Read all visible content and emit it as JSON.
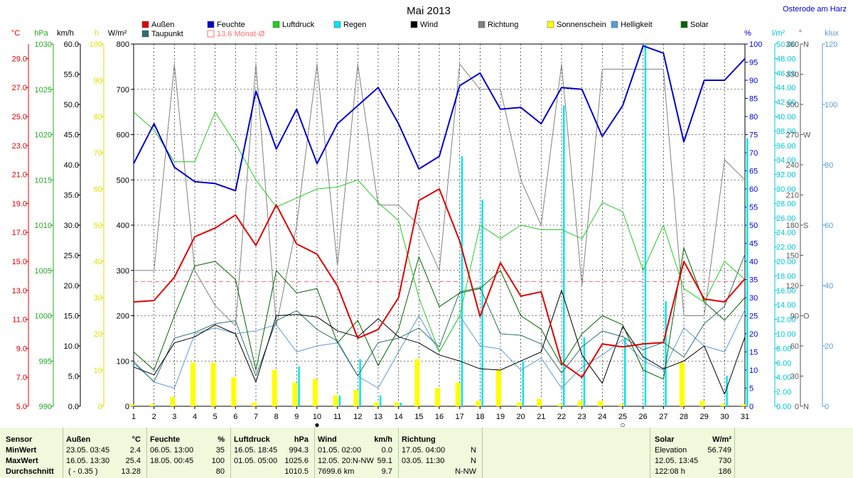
{
  "title": "Mai 2013",
  "location": "Osterode am Harz",
  "colors": {
    "aussen": "#e00000",
    "feuchte": "#0000cc",
    "luftdruck": "#22cc22",
    "regen": "#00e5ee",
    "wind": "#000000",
    "richtung": "#808080",
    "sonnenschein": "#ffff00",
    "helligkeit": "#5b9bd5",
    "solar": "#006400",
    "taupunkt": "#2f6f6f",
    "monat": "#ff7070"
  },
  "legend": [
    {
      "key": "aussen",
      "label": "Außen"
    },
    {
      "key": "feuchte",
      "label": "Feuchte"
    },
    {
      "key": "luftdruck",
      "label": "Luftdruck"
    },
    {
      "key": "regen",
      "label": "Regen"
    },
    {
      "key": "wind",
      "label": "Wind"
    },
    {
      "key": "richtung",
      "label": "Richtung"
    },
    {
      "key": "sonnenschein",
      "label": "Sonnenschein"
    },
    {
      "key": "helligkeit",
      "label": "Helligkeit"
    },
    {
      "key": "solar",
      "label": "Solar"
    },
    {
      "key": "taupunkt",
      "label": "Taupunkt"
    },
    {
      "key": "monat",
      "label": "13.6 Monat-Ø"
    }
  ],
  "axis_units": {
    "temp": "°C",
    "hpa": "hPa",
    "kmh": "km/h",
    "hours": "h",
    "wm2": "W/m²",
    "pct": "%",
    "lm2": "l/m²",
    "deg": "°",
    "klux": "klux"
  },
  "axes": {
    "temp": {
      "min": 5,
      "max": 30,
      "ticks": [
        "5.0",
        "7.0",
        "9.0",
        "11.0",
        "13.0",
        "15.0",
        "17.0",
        "19.0",
        "21.0",
        "23.0",
        "25.0",
        "27.0",
        "29.0"
      ]
    },
    "hpa": {
      "min": 990,
      "max": 1030,
      "ticks": [
        "990",
        "995",
        "1000",
        "1005",
        "1010",
        "1015",
        "1020",
        "1025",
        "1030"
      ]
    },
    "kmh": {
      "min": 0,
      "max": 60,
      "ticks": [
        "0.0",
        "5.0",
        "10.0",
        "15.0",
        "20.0",
        "25.0",
        "30.0",
        "35.0",
        "40.0",
        "45.0",
        "50.0",
        "55.0",
        "60.0"
      ]
    },
    "hours": {
      "min": 0,
      "max": 100,
      "ticks": [
        "0",
        "10",
        "20",
        "30",
        "40",
        "50",
        "60",
        "70",
        "80",
        "90",
        "100"
      ]
    },
    "wm2": {
      "min": 0,
      "max": 800,
      "ticks": [
        "0",
        "100",
        "200",
        "300",
        "400",
        "500",
        "600",
        "700",
        "800"
      ]
    },
    "pct": {
      "min": 0,
      "max": 100,
      "ticks": [
        "0",
        "5",
        "10",
        "15",
        "20",
        "25",
        "30",
        "35",
        "40",
        "45",
        "50",
        "55",
        "60",
        "65",
        "70",
        "75",
        "80",
        "85",
        "90",
        "95",
        "100"
      ]
    },
    "lm2": {
      "min": 0,
      "max": 50,
      "ticks": [
        "0.00",
        "2.00",
        "4.00",
        "6.00",
        "8.00",
        "10.00",
        "12.00",
        "14.00",
        "16.00",
        "18.00",
        "20.00",
        "22.00",
        "24.00",
        "26.00",
        "28.00",
        "30.00",
        "32.00",
        "34.00",
        "36.00",
        "38.00",
        "40.00",
        "42.00",
        "44.00",
        "46.00",
        "48.00",
        "50.00"
      ]
    },
    "deg": {
      "min": 0,
      "max": 360,
      "ticks": [
        "0",
        "30",
        "60",
        "90",
        "120",
        "150",
        "180",
        "210",
        "240",
        "270",
        "300",
        "330",
        "360"
      ],
      "compass": [
        {
          "value": 0,
          "label": "N"
        },
        {
          "value": 90,
          "label": "O"
        },
        {
          "value": 180,
          "label": "S"
        },
        {
          "value": 270,
          "label": "W"
        },
        {
          "value": 360,
          "label": "N"
        }
      ]
    },
    "klux": {
      "min": 0,
      "max": 120,
      "ticks": [
        "0",
        "20",
        "40",
        "60",
        "80",
        "100",
        "120"
      ]
    }
  },
  "chart_data": {
    "type": "line",
    "title": "Mai 2013",
    "x": [
      1,
      2,
      3,
      4,
      5,
      6,
      7,
      8,
      9,
      10,
      11,
      12,
      13,
      14,
      15,
      16,
      17,
      18,
      19,
      20,
      21,
      22,
      23,
      24,
      25,
      26,
      27,
      28,
      29,
      30,
      31
    ],
    "monthly_average_temp": 13.6,
    "series": [
      {
        "name": "Außen",
        "axis": "temp",
        "values": [
          12.2,
          12.3,
          13.9,
          16.7,
          17.3,
          18.2,
          16.1,
          18.9,
          16.2,
          15.5,
          13.3,
          9.7,
          10.3,
          12.5,
          19.2,
          20.0,
          16.4,
          11.2,
          14.9,
          12.6,
          12.9,
          8.0,
          7.0,
          9.3,
          9.1,
          9.3,
          9.4,
          15.0,
          12.4,
          12.2,
          13.8
        ]
      },
      {
        "name": "Feuchte",
        "axis": "pct",
        "values": [
          67,
          78,
          66,
          62,
          61.5,
          59.5,
          87,
          71,
          82,
          67,
          78,
          83,
          88,
          78,
          65.5,
          69,
          88.5,
          92,
          82,
          82.5,
          78,
          88,
          87.5,
          74.5,
          83,
          99.5,
          97.5,
          73,
          90,
          90,
          96
        ]
      },
      {
        "name": "Luftdruck",
        "axis": "hpa",
        "values": [
          1022.5,
          1020.5,
          1017,
          1017,
          1022.5,
          1019,
          1015,
          1012,
          1013,
          1014,
          1014.2,
          1015,
          1012.5,
          1010.5,
          1002,
          996,
          1000,
          1010,
          1008.5,
          1010,
          1009.5,
          1009.5,
          1008.5,
          1012.5,
          1011.5,
          1005,
          1010,
          1003,
          1001.5,
          1006,
          1004
        ]
      },
      {
        "name": "Taupunkt",
        "axis": "temp",
        "values": [
          8.0,
          6.7,
          9.7,
          10.1,
          10.7,
          10.9,
          7.1,
          10.9,
          11.6,
          10.3,
          9.5,
          7.1,
          9.4,
          9.7,
          10.4,
          9.1,
          12.9,
          13.2,
          10.0,
          9.9,
          9.3,
          7.3,
          9.1,
          10.2,
          9.8,
          8.9,
          9.4,
          8.4,
          10.7,
          11.9,
          15.5
        ]
      },
      {
        "name": "Wind",
        "axis": "kmh",
        "values": [
          6.5,
          5.2,
          10.5,
          11.5,
          13.5,
          12.0,
          4.0,
          15.0,
          15.2,
          14.8,
          12.5,
          11.5,
          14.5,
          11.5,
          10.5,
          8.5,
          7.5,
          6.2,
          6.0,
          7.5,
          9.0,
          19.2,
          8.5,
          3.8,
          13.2,
          8.2,
          6.2,
          7.5,
          10.0,
          2.0,
          11.5
        ]
      },
      {
        "name": "Richtung",
        "axis": "deg",
        "values": [
          135,
          135,
          340,
          135,
          100,
          80,
          340,
          80,
          180,
          340,
          140,
          340,
          200,
          200,
          180,
          135,
          340,
          315,
          315,
          225,
          180,
          340,
          120,
          335,
          335,
          335,
          335,
          90,
          90,
          245,
          225
        ]
      },
      {
        "name": "Helligkeit",
        "axis": "klux",
        "values": [
          15,
          8,
          6,
          24,
          26,
          24,
          25,
          27,
          18,
          20,
          21,
          10,
          6,
          18,
          30,
          18,
          30,
          20,
          19,
          12,
          16,
          6,
          13,
          17,
          22,
          15,
          12,
          26,
          20,
          18,
          32
        ]
      },
      {
        "name": "Solar",
        "axis": "wm2",
        "values": [
          120,
          80,
          200,
          310,
          320,
          280,
          80,
          300,
          250,
          260,
          140,
          190,
          90,
          170,
          330,
          220,
          250,
          260,
          300,
          200,
          170,
          90,
          160,
          200,
          180,
          80,
          60,
          350,
          230,
          190,
          240
        ]
      },
      {
        "name": "Sonnenschein",
        "axis": "hours",
        "type": "bar",
        "values": [
          0.5,
          0.5,
          2.5,
          12,
          12,
          8,
          1,
          10,
          6.5,
          7.5,
          3,
          4.5,
          1,
          1,
          13,
          5,
          6.5,
          1.5,
          10,
          1,
          2,
          0.5,
          1.5,
          1.5,
          0.5,
          0,
          0,
          12,
          1.5,
          0.5,
          0.5
        ]
      },
      {
        "name": "Regen",
        "axis": "lm2",
        "type": "bar",
        "values": [
          0,
          0.2,
          0,
          0,
          0,
          0,
          0,
          0,
          5.5,
          0,
          1.5,
          6.5,
          1.5,
          0.5,
          0,
          0,
          34.5,
          28.5,
          0,
          6.2,
          0,
          41.5,
          9.5,
          0,
          9.5,
          50,
          14.5,
          0,
          0,
          4.2,
          37
        ]
      }
    ]
  },
  "markers": [
    {
      "day": 10,
      "symbol": "●"
    },
    {
      "day": 25,
      "symbol": "○"
    }
  ],
  "panel": {
    "sensor": {
      "title": "Sensor",
      "rows": [
        "MinWert",
        "MaxWert",
        "Durchschnitt"
      ]
    },
    "aussen": {
      "title": "Außen",
      "unit": "°C",
      "rows": [
        {
          "time": "23.05.  03:45",
          "value": "2.4"
        },
        {
          "time": "16.05.  13:30",
          "value": "25.4"
        },
        {
          "time": "( - 0.35 )",
          "value": "13.28"
        }
      ]
    },
    "feuchte": {
      "title": "Feuchte",
      "unit": "%",
      "rows": [
        {
          "time": "06.05.  13:00",
          "value": "35"
        },
        {
          "time": "18.05.  00:45",
          "value": "100"
        },
        {
          "time": "",
          "value": "80"
        }
      ]
    },
    "luftdruck": {
      "title": "Luftdruck",
      "unit": "hPa",
      "rows": [
        {
          "time": "16.05.  18:45",
          "value": "994.3"
        },
        {
          "time": "01.05.  05:00",
          "value": "1025.6"
        },
        {
          "time": "",
          "value": "1010.5"
        }
      ]
    },
    "wind": {
      "title": "Wind",
      "unit": "km/h",
      "rows": [
        {
          "time": "01.05.  02:00",
          "value": "0.0"
        },
        {
          "time": "12.05.  20:N-NW",
          "value": "59.1"
        },
        {
          "time": "7699.6 km",
          "value": "9.7"
        }
      ]
    },
    "richtung": {
      "title": "Richtung",
      "rows": [
        {
          "time": "17.05.  04:00",
          "value": "N"
        },
        {
          "time": "03.05.  11:30",
          "value": "N"
        },
        {
          "time": "",
          "value": "N-NW"
        }
      ]
    },
    "solar": {
      "title": "Solar",
      "unit": "W/m²",
      "rows": [
        {
          "time": "Elevation",
          "value": "56.749"
        },
        {
          "time": "12.05.  13:45",
          "value": "730"
        },
        {
          "time": "122:08 h",
          "value": "186"
        }
      ]
    }
  }
}
